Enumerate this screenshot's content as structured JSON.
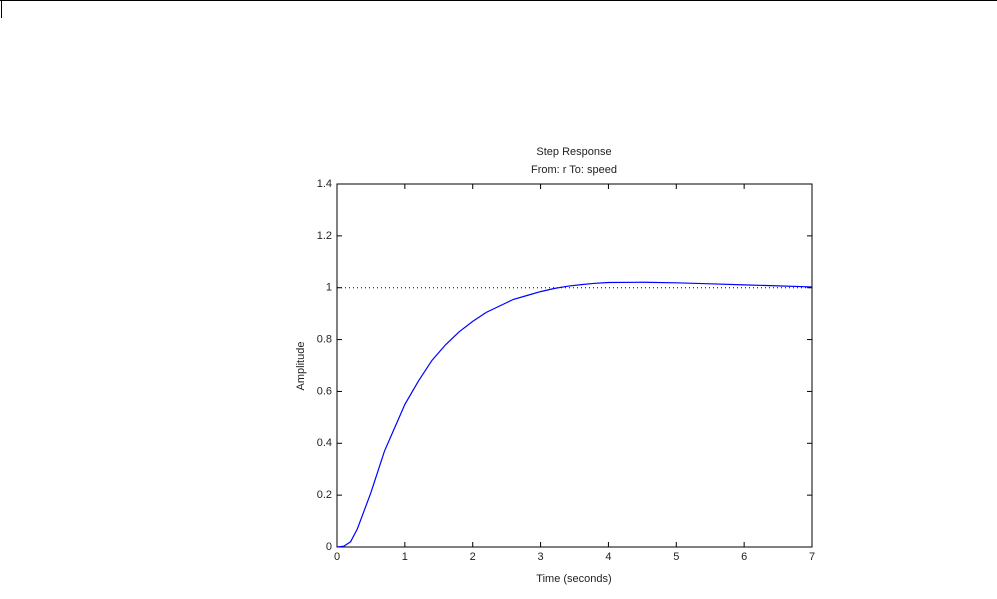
{
  "chart_data": {
    "type": "line",
    "title": "Step Response",
    "subtitle": "From: r  To: speed",
    "xlabel": "Time (seconds)",
    "ylabel": "Amplitude",
    "x": [
      0,
      0.1,
      0.2,
      0.3,
      0.4,
      0.5,
      0.6,
      0.7,
      0.8,
      0.9,
      1.0,
      1.2,
      1.4,
      1.6,
      1.8,
      2.0,
      2.2,
      2.4,
      2.6,
      2.8,
      3.0,
      3.2,
      3.4,
      3.6,
      3.8,
      4.0,
      4.5,
      5.0,
      5.5,
      6.0,
      6.5,
      7.0
    ],
    "series": [
      {
        "color": "#0000ff",
        "values": [
          0,
          0.003,
          0.02,
          0.07,
          0.14,
          0.21,
          0.29,
          0.37,
          0.43,
          0.49,
          0.55,
          0.64,
          0.72,
          0.78,
          0.83,
          0.87,
          0.905,
          0.93,
          0.955,
          0.97,
          0.985,
          0.997,
          1.006,
          1.012,
          1.017,
          1.02,
          1.021,
          1.019,
          1.015,
          1.011,
          1.007,
          1.003
        ]
      }
    ],
    "reference_line": 1,
    "xlim": [
      0,
      7
    ],
    "xticks": [
      0,
      1,
      2,
      3,
      4,
      5,
      6,
      7
    ],
    "ylim": [
      0,
      1.4
    ],
    "yticks": [
      0,
      0.2,
      0.4,
      0.6,
      0.8,
      1,
      1.2,
      1.4
    ]
  }
}
